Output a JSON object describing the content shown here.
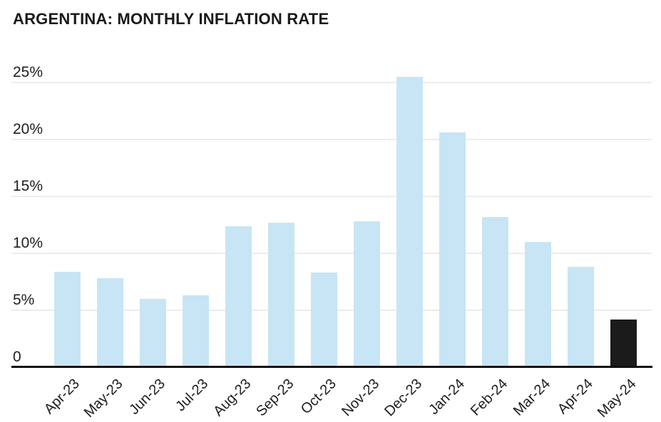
{
  "title": "ARGENTINA: MONTHLY INFLATION RATE",
  "colors": {
    "bar": "#C7E5F4",
    "highlight_bar": "#1B1B1B",
    "gridline": "#ECECEC",
    "axis_line": "#111111",
    "text": "#1E1E1E"
  },
  "chart_data": {
    "type": "bar",
    "title": "ARGENTINA: MONTHLY INFLATION RATE",
    "categories": [
      "Apr-23",
      "May-23",
      "Jun-23",
      "Jul-23",
      "Aug-23",
      "Sep-23",
      "Oct-23",
      "Nov-23",
      "Dec-23",
      "Jan-24",
      "Feb-24",
      "Mar-24",
      "Apr-24",
      "May-24"
    ],
    "values": [
      8.4,
      7.8,
      6.0,
      6.3,
      12.4,
      12.7,
      8.3,
      12.8,
      25.5,
      20.6,
      13.2,
      11.0,
      8.8,
      4.2
    ],
    "highlight_index": 13,
    "yticks": [
      {
        "label": "25%",
        "value": 25
      },
      {
        "label": "20%",
        "value": 20
      },
      {
        "label": "15%",
        "value": 15
      },
      {
        "label": "10%",
        "value": 10
      },
      {
        "label": "5%",
        "value": 5
      },
      {
        "label": "0",
        "value": 0
      }
    ],
    "xlabel": "",
    "ylabel": "",
    "ylim": [
      0,
      26.5
    ],
    "grid": "horizontal",
    "legend": "none"
  }
}
